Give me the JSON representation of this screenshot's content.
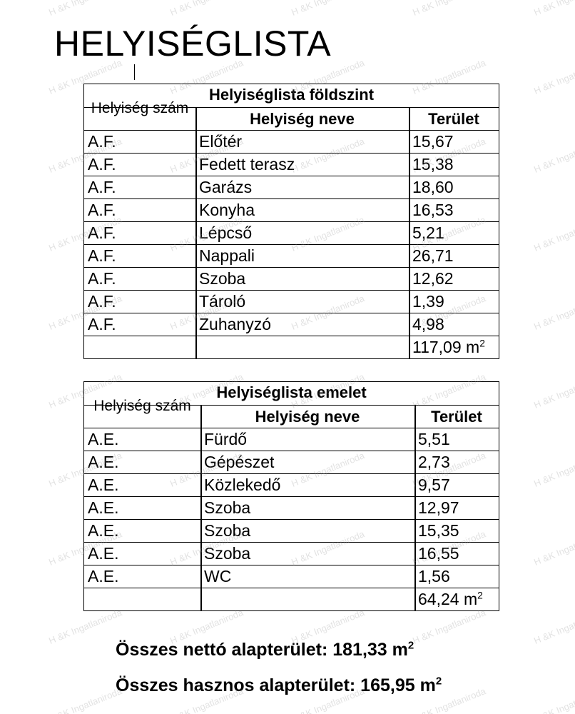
{
  "document": {
    "title": "HELYISÉGLISTA",
    "watermark": "H &K Ingatlaniroda"
  },
  "ground_floor": {
    "caption": "Helyiséglista földszint",
    "headers": {
      "number": "Helyiség szám",
      "name": "Helyiség neve",
      "area": "Terület"
    },
    "rows": [
      {
        "number": "A.F.",
        "name": "Előtér",
        "area": "15,67"
      },
      {
        "number": "A.F.",
        "name": "Fedett terasz",
        "area": "15,38"
      },
      {
        "number": "A.F.",
        "name": "Garázs",
        "area": "18,60"
      },
      {
        "number": "A.F.",
        "name": "Konyha",
        "area": "16,53"
      },
      {
        "number": "A.F.",
        "name": "Lépcső",
        "area": "5,21"
      },
      {
        "number": "A.F.",
        "name": "Nappali",
        "area": "26,71"
      },
      {
        "number": "A.F.",
        "name": "Szoba",
        "area": "12,62"
      },
      {
        "number": "A.F.",
        "name": "Tároló",
        "area": "1,39"
      },
      {
        "number": "A.F.",
        "name": "Zuhanyzó",
        "area": "4,98"
      }
    ],
    "total": "117,09 m",
    "total_unit_sup": "2"
  },
  "upper_floor": {
    "caption": "Helyiséglista emelet",
    "headers": {
      "number": "Helyiség szám",
      "name": "Helyiség neve",
      "area": "Terület"
    },
    "rows": [
      {
        "number": "A.E.",
        "name": "Fürdő",
        "area": "5,51"
      },
      {
        "number": "A.E.",
        "name": "Gépészet",
        "area": "2,73"
      },
      {
        "number": "A.E.",
        "name": "Közlekedő",
        "area": "9,57"
      },
      {
        "number": "A.E.",
        "name": "Szoba",
        "area": "12,97"
      },
      {
        "number": "A.E.",
        "name": "Szoba",
        "area": "15,35"
      },
      {
        "number": "A.E.",
        "name": "Szoba",
        "area": "16,55"
      },
      {
        "number": "A.E.",
        "name": "WC",
        "area": "1,56"
      }
    ],
    "total": "64,24 m",
    "total_unit_sup": "2"
  },
  "summary": {
    "net_label": "Összes nettó alapterület: 181,33 m",
    "net_sup": "2",
    "useful_label": "Összes hasznos alapterület: 165,95 m",
    "useful_sup": "2"
  }
}
